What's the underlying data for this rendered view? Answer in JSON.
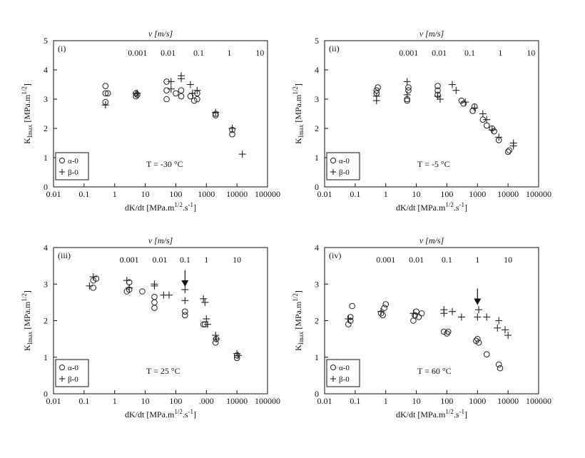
{
  "chart_data": [
    {
      "type": "scatter",
      "panel_label": "(i)",
      "top_axis_label": "v [m/s]",
      "top_ticks": [
        {
          "label": "0.001",
          "x": 5.6
        },
        {
          "label": "0.01",
          "x": 56
        },
        {
          "label": "0.1",
          "x": 560
        },
        {
          "label": "1",
          "x": 5600
        },
        {
          "label": "10",
          "x": 56000
        }
      ],
      "xlabel": "dK/dt [MPa.m1/2.s-1]",
      "ylabel": "KImax [MPa.m1/2]",
      "xscale": "log",
      "xlim": [
        0.01,
        100000
      ],
      "ylim": [
        0,
        5
      ],
      "xticks": [
        "0.01",
        "0.1",
        "1",
        "10",
        "100",
        "1000",
        "10000",
        "100000"
      ],
      "yticks": [
        "0",
        "1",
        "2",
        "3",
        "4",
        "5"
      ],
      "temperature": "T = -30 °C",
      "legend": [
        "α-0",
        "β-0"
      ],
      "legend_position": "bottom-left",
      "series": [
        {
          "name": "α-0",
          "marker": "circle",
          "points": [
            [
              0.5,
              2.9
            ],
            [
              0.5,
              3.2
            ],
            [
              0.5,
              3.45
            ],
            [
              0.6,
              3.2
            ],
            [
              5,
              3.1
            ],
            [
              5,
              3.2
            ],
            [
              5.5,
              3.15
            ],
            [
              50,
              3.0
            ],
            [
              50,
              3.3
            ],
            [
              50,
              3.6
            ],
            [
              100,
              3.2
            ],
            [
              150,
              3.1
            ],
            [
              150,
              3.3
            ],
            [
              300,
              3.1
            ],
            [
              400,
              2.95
            ],
            [
              500,
              3.0
            ],
            [
              500,
              3.2
            ],
            [
              2000,
              2.5
            ],
            [
              2000,
              2.45
            ],
            [
              7000,
              1.8
            ],
            [
              7000,
              1.95
            ]
          ]
        },
        {
          "name": "β-0",
          "marker": "plus",
          "points": [
            [
              0.5,
              2.8
            ],
            [
              5,
              3.2
            ],
            [
              5.5,
              3.2
            ],
            [
              70,
              3.35
            ],
            [
              70,
              3.6
            ],
            [
              150,
              3.8
            ],
            [
              150,
              3.7
            ],
            [
              300,
              3.5
            ],
            [
              350,
              3.2
            ],
            [
              500,
              3.3
            ],
            [
              2000,
              2.55
            ],
            [
              7000,
              2.0
            ],
            [
              15000,
              1.12
            ]
          ]
        }
      ]
    },
    {
      "type": "scatter",
      "panel_label": "(ii)",
      "top_axis_label": "v [m/s]",
      "top_ticks": [
        {
          "label": "0.001",
          "x": 5.6
        },
        {
          "label": "0.01",
          "x": 56
        },
        {
          "label": "0.1",
          "x": 560
        },
        {
          "label": "1",
          "x": 5600
        },
        {
          "label": "10",
          "x": 56000
        }
      ],
      "xlabel": "dK/dt [MPa.m1/2.s-1]",
      "ylabel": "KImax [MPa.m1/2]",
      "xscale": "log",
      "xlim": [
        0.01,
        100000
      ],
      "ylim": [
        0,
        5
      ],
      "xticks": [
        "0.01",
        "0.1",
        "1",
        "10",
        "100",
        "1000",
        "10000",
        "100000"
      ],
      "yticks": [
        "0",
        "1",
        "2",
        "3",
        "4",
        "5"
      ],
      "temperature": "T = -5 °C",
      "legend": [
        "α-0",
        "β-0"
      ],
      "legend_position": "bottom-left",
      "series": [
        {
          "name": "α-0",
          "marker": "circle",
          "points": [
            [
              0.5,
              3.2
            ],
            [
              0.5,
              3.3
            ],
            [
              0.55,
              3.4
            ],
            [
              5,
              3.0
            ],
            [
              5,
              2.95
            ],
            [
              5.5,
              3.3
            ],
            [
              5.5,
              3.4
            ],
            [
              50,
              3.15
            ],
            [
              50,
              3.3
            ],
            [
              50,
              3.45
            ],
            [
              300,
              2.95
            ],
            [
              350,
              2.85
            ],
            [
              700,
              2.6
            ],
            [
              800,
              2.75
            ],
            [
              1500,
              2.3
            ],
            [
              2000,
              2.1
            ],
            [
              3000,
              2.0
            ],
            [
              3500,
              1.9
            ],
            [
              5000,
              1.6
            ],
            [
              10000,
              1.2
            ],
            [
              11000,
              1.25
            ]
          ]
        },
        {
          "name": "β-0",
          "marker": "plus",
          "points": [
            [
              0.5,
              2.95
            ],
            [
              0.5,
              3.1
            ],
            [
              5,
              3.6
            ],
            [
              5,
              3.15
            ],
            [
              50,
              3.1
            ],
            [
              60,
              3.0
            ],
            [
              150,
              3.5
            ],
            [
              200,
              3.3
            ],
            [
              400,
              2.9
            ],
            [
              800,
              2.7
            ],
            [
              1500,
              2.5
            ],
            [
              2000,
              2.3
            ],
            [
              3000,
              1.95
            ],
            [
              5000,
              1.7
            ],
            [
              15000,
              1.5
            ],
            [
              15000,
              1.4
            ]
          ]
        }
      ]
    },
    {
      "type": "scatter",
      "panel_label": "(iii)",
      "top_axis_label": "v [m/s]",
      "top_ticks": [
        {
          "label": "0.001",
          "x": 3
        },
        {
          "label": "0.01",
          "x": 30
        },
        {
          "label": "0.1",
          "x": 200
        },
        {
          "label": "1",
          "x": 1000
        },
        {
          "label": "10",
          "x": 10000
        }
      ],
      "xlabel": "dK/dt [MPa.m1/2.s-1]",
      "ylabel": "KImax [MPa.m1/2]",
      "xscale": "log",
      "xlim": [
        0.01,
        100000
      ],
      "ylim": [
        0,
        4
      ],
      "xticks": [
        "0.01",
        "0.1",
        "1",
        "10",
        "100",
        ".000",
        "10000",
        "100000"
      ],
      "yticks": [
        "0",
        "1",
        "2",
        "3",
        "4"
      ],
      "temperature": "T = 25 °C",
      "legend": [
        "α-0",
        "β-0"
      ],
      "legend_position": "bottom-left",
      "arrow_at": [
        200,
        2.95
      ],
      "series": [
        {
          "name": "α-0",
          "marker": "circle",
          "points": [
            [
              0.2,
              2.9
            ],
            [
              0.2,
              3.1
            ],
            [
              0.25,
              3.15
            ],
            [
              2.5,
              2.8
            ],
            [
              3,
              2.85
            ],
            [
              3,
              3.05
            ],
            [
              8,
              2.8
            ],
            [
              20,
              2.35
            ],
            [
              20,
              2.5
            ],
            [
              20,
              2.65
            ],
            [
              200,
              2.15
            ],
            [
              200,
              2.25
            ],
            [
              800,
              1.9
            ],
            [
              900,
              1.9
            ],
            [
              2000,
              1.4
            ],
            [
              2100,
              1.5
            ],
            [
              10000,
              0.98
            ],
            [
              10000,
              1.05
            ]
          ]
        },
        {
          "name": "β-0",
          "marker": "plus",
          "points": [
            [
              0.15,
              2.95
            ],
            [
              0.2,
              3.2
            ],
            [
              2.5,
              3.1
            ],
            [
              3,
              2.9
            ],
            [
              20,
              3.0
            ],
            [
              20,
              2.95
            ],
            [
              40,
              2.7
            ],
            [
              60,
              2.7
            ],
            [
              200,
              2.55
            ],
            [
              200,
              2.85
            ],
            [
              800,
              2.6
            ],
            [
              900,
              2.5
            ],
            [
              1000,
              2.05
            ],
            [
              1100,
              1.9
            ],
            [
              2000,
              1.6
            ],
            [
              2100,
              1.5
            ],
            [
              10000,
              1.1
            ],
            [
              11000,
              1.05
            ]
          ]
        }
      ]
    },
    {
      "type": "scatter",
      "panel_label": "(iv)",
      "top_axis_label": "v [m/s]",
      "top_ticks": [
        {
          "label": "0.001",
          "x": 1
        },
        {
          "label": "0.01",
          "x": 10
        },
        {
          "label": "0.1",
          "x": 100
        },
        {
          "label": "1",
          "x": 1000
        },
        {
          "label": "10",
          "x": 10000
        }
      ],
      "xlabel": "dK/dt [MPa.m1/2.s-1]",
      "ylabel": "KImax [MPa.m1/2]",
      "xscale": "log",
      "xlim": [
        0.01,
        100000
      ],
      "ylim": [
        0,
        4
      ],
      "xticks": [
        "0.01",
        "0.1",
        "1",
        "10",
        "100",
        "1000",
        "10000",
        "100000"
      ],
      "yticks": [
        "0",
        "1",
        "2",
        "3",
        "4"
      ],
      "temperature": "T = 60 °C",
      "legend": [
        "α-0",
        "β-0"
      ],
      "legend_position": "bottom-left",
      "arrow_at": [
        1000,
        2.45
      ],
      "series": [
        {
          "name": "α-0",
          "marker": "circle",
          "points": [
            [
              0.06,
              1.9
            ],
            [
              0.07,
              2.0
            ],
            [
              0.07,
              2.1
            ],
            [
              0.08,
              2.4
            ],
            [
              0.7,
              2.2
            ],
            [
              0.8,
              2.15
            ],
            [
              0.9,
              2.35
            ],
            [
              1,
              2.45
            ],
            [
              8,
              2.0
            ],
            [
              9,
              2.15
            ],
            [
              10,
              2.25
            ],
            [
              12,
              2.1
            ],
            [
              15,
              2.2
            ],
            [
              80,
              1.7
            ],
            [
              100,
              1.65
            ],
            [
              110,
              1.7
            ],
            [
              900,
              1.45
            ],
            [
              1000,
              1.5
            ],
            [
              1100,
              1.4
            ],
            [
              2000,
              1.08
            ],
            [
              5000,
              0.8
            ],
            [
              5500,
              0.7
            ]
          ]
        },
        {
          "name": "β-0",
          "marker": "plus",
          "points": [
            [
              0.06,
              2.05
            ],
            [
              0.7,
              2.25
            ],
            [
              8,
              2.2
            ],
            [
              80,
              2.2
            ],
            [
              80,
              2.3
            ],
            [
              150,
              2.25
            ],
            [
              300,
              2.1
            ],
            [
              1000,
              2.1
            ],
            [
              1100,
              2.3
            ],
            [
              2000,
              2.1
            ],
            [
              4500,
              1.8
            ],
            [
              5000,
              2.0
            ],
            [
              8000,
              1.75
            ],
            [
              10000,
              1.6
            ]
          ]
        }
      ]
    }
  ]
}
